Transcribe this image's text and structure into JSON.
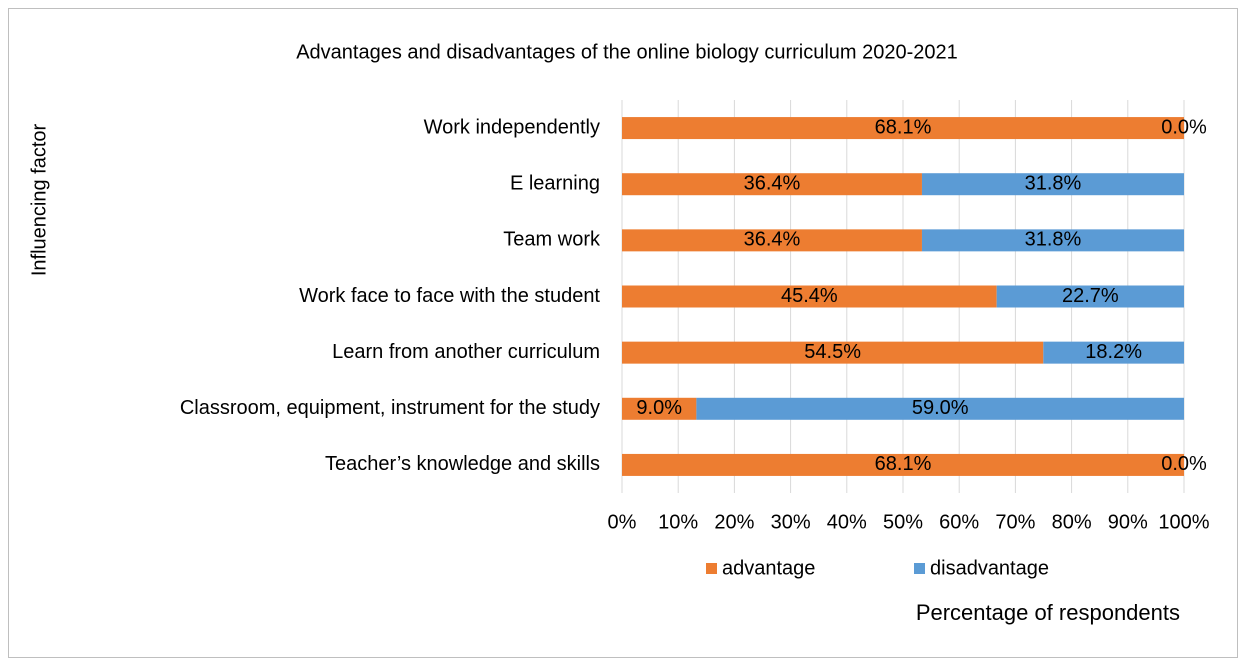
{
  "chart_data": {
    "type": "bar",
    "orientation": "horizontal",
    "stacking": "percent",
    "title": "Advantages and disadvantages of the online biology curriculum  2020-2021",
    "ylabel": "Influencing factor",
    "xlabel": "Percentage of respondents",
    "categories": [
      "Work independently",
      "E learning",
      "Team work",
      "Work face to face with the student",
      "Learn from another curriculum",
      "Classroom, equipment, instrument for the study",
      "Teacher’s knowledge and skills"
    ],
    "series": [
      {
        "name": "advantage",
        "color": "#ed7d31",
        "values": [
          68.1,
          36.4,
          36.4,
          45.4,
          54.5,
          9.0,
          68.1
        ],
        "value_labels": [
          "68.1%",
          "36.4%",
          "36.4%",
          "45.4%",
          "54.5%",
          "9.0%",
          "68.1%"
        ]
      },
      {
        "name": "disadvantage",
        "color": "#5b9bd5",
        "values": [
          0.0,
          31.8,
          31.8,
          22.7,
          18.2,
          59.0,
          0.0
        ],
        "value_labels": [
          "0.0%",
          "31.8%",
          "31.8%",
          "22.7%",
          "18.2%",
          "59.0%",
          "0.0%"
        ]
      }
    ],
    "xlim": [
      0,
      100
    ],
    "xticks": [
      {
        "value": 0,
        "label": "0%"
      },
      {
        "value": 10,
        "label": "10%"
      },
      {
        "value": 20,
        "label": "20%"
      },
      {
        "value": 30,
        "label": "30%"
      },
      {
        "value": 40,
        "label": "40%"
      },
      {
        "value": 50,
        "label": "50%"
      },
      {
        "value": 60,
        "label": "60%"
      },
      {
        "value": 70,
        "label": "70%"
      },
      {
        "value": 80,
        "label": "80%"
      },
      {
        "value": 90,
        "label": "90%"
      },
      {
        "value": 100,
        "label": "100%"
      }
    ],
    "grid": true,
    "legend": "bottom"
  }
}
